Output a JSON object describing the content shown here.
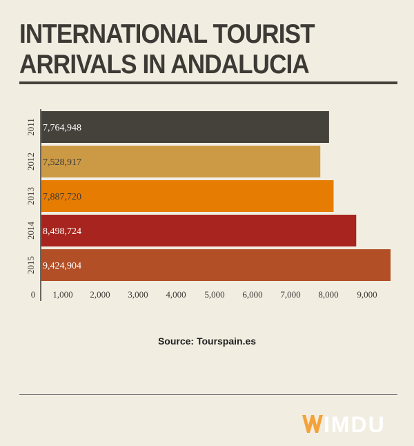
{
  "header": {
    "title": "INTERNATIONAL TOURIST ARRIVALS IN ANDALUCIA"
  },
  "chart_data": {
    "type": "bar",
    "orientation": "horizontal",
    "categories": [
      "2011",
      "2012",
      "2013",
      "2014",
      "2015"
    ],
    "values": [
      7764948,
      7528917,
      7887720,
      8498724,
      9424904
    ],
    "value_labels": [
      "7,764,948",
      "7,528,917",
      "7,887,720",
      "8,498,724",
      "9,424,904"
    ],
    "bar_colors": [
      "#45413b",
      "#cc9a45",
      "#e67c02",
      "#a7251e",
      "#b24f27"
    ],
    "label_colors": [
      "#ffffff",
      "#3d3a36",
      "#3d3a36",
      "#ffffff",
      "#ffffff"
    ],
    "x_ticks": [
      0,
      1000,
      2000,
      3000,
      4000,
      5000,
      6000,
      7000,
      8000,
      9000
    ],
    "x_tick_labels": [
      "0",
      "1,000",
      "2,000",
      "3,000",
      "4,000",
      "5,000",
      "6,000",
      "7,000",
      "8,000",
      "9,000"
    ],
    "xlim": [
      0,
      9424904
    ]
  },
  "footer": {
    "source": "Source: Tourspain.es",
    "logo_text": "IMDU",
    "logo_color": "#f4a23a"
  }
}
